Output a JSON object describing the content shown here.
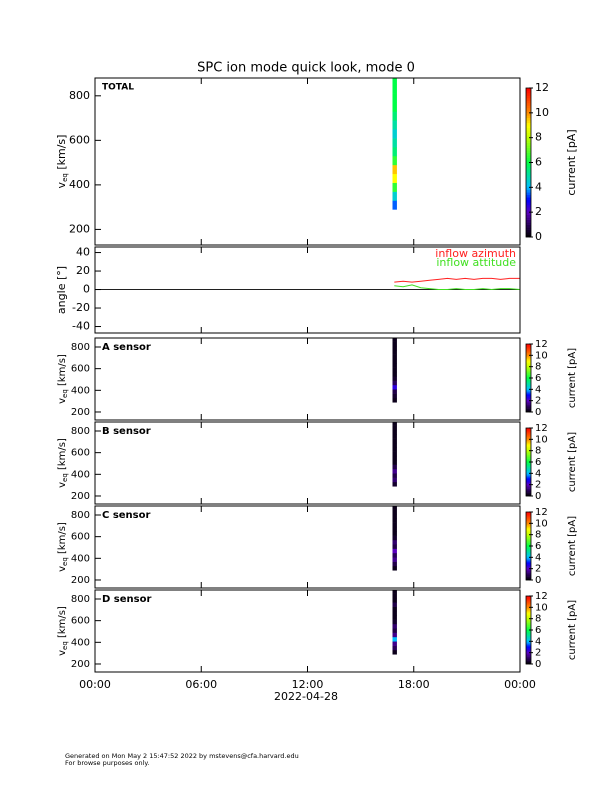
{
  "title": "SPC ion mode quick look, mode 0",
  "x_axis": {
    "xlim": [
      0,
      24
    ],
    "xticks": [
      {
        "value": 0,
        "label": "00:00"
      },
      {
        "value": 6,
        "label": "06:00"
      },
      {
        "value": 12,
        "label": "12:00"
      },
      {
        "value": 18,
        "label": "18:00"
      },
      {
        "value": 24,
        "label": "00:00"
      }
    ],
    "label": "2022-04-28"
  },
  "footer": [
    "Generated on Mon May  2 15:47:52 2022 by mstevens@cfa.harvard.edu",
    "For browse purposes only."
  ],
  "chart_data": [
    {
      "type": "heatmap",
      "label": "TOTAL",
      "ylabel": {
        "main": "v",
        "sub": "eq",
        "unit": " [km/s]"
      },
      "ylim": [
        130,
        880
      ],
      "yticks": [
        200,
        400,
        600,
        800
      ],
      "clim": [
        0,
        12
      ],
      "cticks": [
        0,
        2,
        4,
        6,
        8,
        10,
        12
      ],
      "clabel": "current [pA]",
      "time_bin": [
        16.8,
        17.05
      ],
      "velocity_bins": [
        290,
        330,
        370,
        410,
        450,
        490,
        530,
        570,
        610,
        650,
        690,
        730,
        770,
        810,
        850,
        880
      ],
      "values": [
        3.5,
        4.5,
        6.5,
        9,
        9.5,
        6.5,
        5.5,
        5,
        4.5,
        5,
        5.5,
        6,
        6,
        6,
        6
      ]
    },
    {
      "type": "line",
      "ylabel": "angle [°]",
      "ylim": [
        -47,
        46
      ],
      "yticks": [
        -40,
        -20,
        0,
        20,
        40
      ],
      "series": [
        {
          "name": "inflow azimuth",
          "color": "#ff2020",
          "x": [
            16.9,
            17.4,
            17.9,
            18.4,
            18.9,
            19.4,
            19.9,
            20.4,
            20.9,
            21.4,
            21.9,
            22.4,
            22.9,
            23.4,
            24
          ],
          "values": [
            8,
            9,
            8,
            9,
            10,
            11,
            12,
            11,
            12,
            11,
            12,
            12,
            11,
            12,
            12
          ]
        },
        {
          "name": "inflow attitude",
          "color": "#40e020",
          "x": [
            16.9,
            17.4,
            17.9,
            18.4,
            18.9,
            19.4,
            19.9,
            20.4,
            20.9,
            21.4,
            21.9,
            22.4,
            22.9,
            23.4,
            24
          ],
          "values": [
            4,
            3,
            5,
            2,
            1,
            0,
            0,
            1,
            0,
            0,
            1,
            0,
            1,
            1,
            0
          ]
        }
      ]
    },
    {
      "type": "heatmap",
      "label": "A sensor",
      "ylabel": {
        "main": "v",
        "sub": "eq",
        "unit": " [km/s]"
      },
      "ylim": [
        126,
        883
      ],
      "yticks": [
        200,
        400,
        600,
        800
      ],
      "clim": [
        0,
        12
      ],
      "cticks": [
        0,
        2,
        4,
        6,
        8,
        10,
        12
      ],
      "clabel": "current [pA]",
      "time_bin": [
        16.8,
        17.05
      ],
      "velocity_bins": [
        290,
        330,
        370,
        410,
        450,
        490,
        530,
        570,
        610,
        650,
        690,
        730,
        770,
        810,
        850,
        880
      ],
      "values": [
        0.3,
        0.5,
        0.8,
        2.5,
        1,
        0.5,
        0.3,
        0.3,
        0.3,
        0.3,
        0.3,
        0.3,
        0.3,
        0.3,
        0.3
      ]
    },
    {
      "type": "heatmap",
      "label": "B sensor",
      "ylabel": {
        "main": "v",
        "sub": "eq",
        "unit": " [km/s]"
      },
      "ylim": [
        126,
        883
      ],
      "yticks": [
        200,
        400,
        600,
        800
      ],
      "clim": [
        0,
        12
      ],
      "cticks": [
        0,
        2,
        4,
        6,
        8,
        10,
        12
      ],
      "clabel": "current [pA]",
      "time_bin": [
        16.8,
        17.05
      ],
      "velocity_bins": [
        290,
        330,
        370,
        410,
        450,
        490,
        530,
        570,
        610,
        650,
        690,
        730,
        770,
        810,
        850,
        880
      ],
      "values": [
        0.5,
        1.2,
        0.8,
        1.5,
        0.8,
        0.3,
        0.3,
        0.3,
        0.3,
        0.3,
        0.3,
        0.3,
        0.3,
        0.3,
        0.3
      ]
    },
    {
      "type": "heatmap",
      "label": "C sensor",
      "ylabel": {
        "main": "v",
        "sub": "eq",
        "unit": " [km/s]"
      },
      "ylim": [
        126,
        883
      ],
      "yticks": [
        200,
        400,
        600,
        800
      ],
      "clim": [
        0,
        12
      ],
      "cticks": [
        0,
        2,
        4,
        6,
        8,
        10,
        12
      ],
      "clabel": "current [pA]",
      "time_bin": [
        16.8,
        17.05
      ],
      "velocity_bins": [
        290,
        330,
        370,
        410,
        450,
        490,
        530,
        570,
        610,
        650,
        690,
        730,
        770,
        810,
        850,
        880
      ],
      "values": [
        0.3,
        0.8,
        1.5,
        1,
        2,
        0.8,
        1.2,
        0.5,
        0.3,
        0.3,
        0.3,
        0.3,
        0.3,
        0.3,
        0.3
      ]
    },
    {
      "type": "heatmap",
      "label": "D sensor",
      "ylabel": {
        "main": "v",
        "sub": "eq",
        "unit": " [km/s]"
      },
      "ylim": [
        126,
        883
      ],
      "yticks": [
        200,
        400,
        600,
        800
      ],
      "clim": [
        0,
        12
      ],
      "cticks": [
        0,
        2,
        4,
        6,
        8,
        10,
        12
      ],
      "clabel": "current [pA]",
      "time_bin": [
        16.8,
        17.05
      ],
      "velocity_bins": [
        290,
        330,
        370,
        410,
        450,
        490,
        530,
        570,
        610,
        650,
        690,
        730,
        770,
        810,
        850,
        880
      ],
      "values": [
        0.3,
        1,
        1.5,
        4,
        1.5,
        0.8,
        1.2,
        0.5,
        0.3,
        0.3,
        0.3,
        0.8,
        0.3,
        0.3,
        0.3
      ]
    }
  ]
}
